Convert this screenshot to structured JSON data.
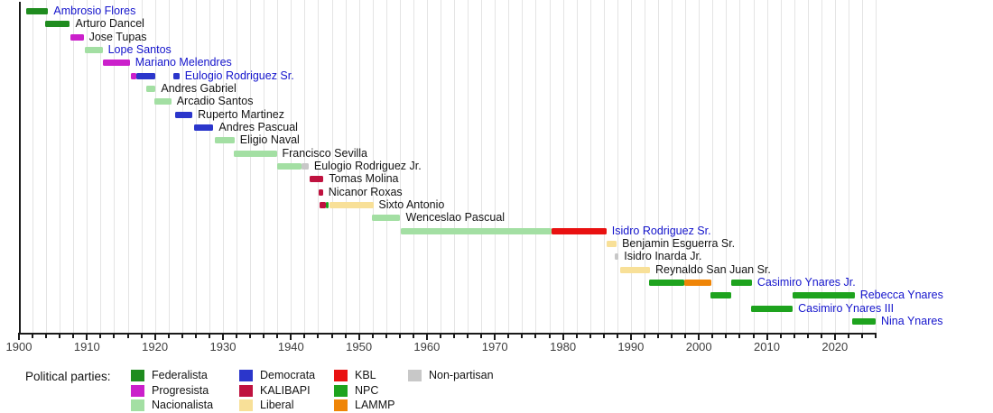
{
  "chart_data": {
    "type": "timeline",
    "title": "",
    "x_axis": {
      "min": 1900,
      "max": 2026,
      "major_tick_interval": 10,
      "minor_tick_interval": 2,
      "gridline_interval": 2,
      "tick_labels": [
        1900,
        1910,
        1920,
        1930,
        1940,
        1950,
        1960,
        1970,
        1980,
        1990,
        2000,
        2010,
        2020
      ]
    },
    "party_colors": {
      "Federalista": "#1f8c1f",
      "Progresista": "#cb20cb",
      "Nacionalista": "#a3dfa3",
      "Democrata": "#2b36cb",
      "KALIBAPI": "#bf123f",
      "Liberal": "#f8e098",
      "KBL": "#e91111",
      "NPC": "#1ea31e",
      "LAMMP": "#ef8507",
      "Non-partisan": "#c8c8c8"
    },
    "label_colors": {
      "linked": "#1414cc",
      "plain": "#141414"
    },
    "rows": [
      {
        "name": "Ambrosio Flores",
        "linked": true,
        "segments": [
          [
            "Federalista",
            1901.0,
            1904.3
          ]
        ]
      },
      {
        "name": "Arturo Dancel",
        "linked": false,
        "segments": [
          [
            "Federalista",
            1903.9,
            1907.5
          ]
        ]
      },
      {
        "name": "Jose Tupas",
        "linked": false,
        "segments": [
          [
            "Progresista",
            1907.5,
            1909.5
          ]
        ]
      },
      {
        "name": "Lope Santos",
        "linked": true,
        "segments": [
          [
            "Nacionalista",
            1909.7,
            1912.3
          ]
        ]
      },
      {
        "name": "Mariano Melendres",
        "linked": true,
        "segments": [
          [
            "Progresista",
            1912.3,
            1916.3
          ]
        ]
      },
      {
        "name": "Eulogio Rodriguez Sr.",
        "linked": true,
        "segments": [
          [
            "Progresista",
            1916.4,
            1917.2
          ],
          [
            "Democrata",
            1917.2,
            1920.0
          ],
          [
            "Democrata",
            1922.7,
            1923.6
          ]
        ]
      },
      {
        "name": "Andres Gabriel",
        "linked": false,
        "segments": [
          [
            "Nacionalista",
            1918.7,
            1920.1
          ]
        ]
      },
      {
        "name": "Arcadio Santos",
        "linked": false,
        "segments": [
          [
            "Nacionalista",
            1919.9,
            1922.4
          ]
        ]
      },
      {
        "name": "Ruperto Martinez",
        "linked": false,
        "segments": [
          [
            "Democrata",
            1923.0,
            1925.5
          ]
        ]
      },
      {
        "name": "Andres Pascual",
        "linked": false,
        "segments": [
          [
            "Democrata",
            1925.7,
            1928.6
          ]
        ]
      },
      {
        "name": "Eligio Naval",
        "linked": false,
        "segments": [
          [
            "Nacionalista",
            1928.8,
            1931.7
          ]
        ]
      },
      {
        "name": "Francisco Sevilla",
        "linked": false,
        "segments": [
          [
            "Nacionalista",
            1931.6,
            1937.9
          ]
        ]
      },
      {
        "name": "Eulogio Rodriguez Jr.",
        "linked": false,
        "segments": [
          [
            "Nacionalista",
            1938.0,
            1941.5
          ],
          [
            "Non-partisan",
            1941.5,
            1942.6
          ]
        ]
      },
      {
        "name": "Tomas Molina",
        "linked": false,
        "segments": [
          [
            "KALIBAPI",
            1942.8,
            1944.8
          ]
        ]
      },
      {
        "name": "Nicanor Roxas",
        "linked": false,
        "segments": [
          [
            "KALIBAPI",
            1944.1,
            1944.7
          ]
        ]
      },
      {
        "name": "Sixto Antonio",
        "linked": false,
        "segments": [
          [
            "KALIBAPI",
            1944.2,
            1945.2
          ],
          [
            "NPC",
            1945.2,
            1945.6
          ],
          [
            "Liberal",
            1945.6,
            1952.1
          ]
        ]
      },
      {
        "name": "Wenceslao Pascual",
        "linked": false,
        "segments": [
          [
            "Nacionalista",
            1951.9,
            1956.1
          ]
        ]
      },
      {
        "name": "Isidro Rodriguez Sr.",
        "linked": true,
        "segments": [
          [
            "Nacionalista",
            1956.1,
            1978.3
          ],
          [
            "KBL",
            1978.3,
            1986.4
          ]
        ]
      },
      {
        "name": "Benjamin Esguerra Sr.",
        "linked": false,
        "segments": [
          [
            "Liberal",
            1986.4,
            1987.9
          ]
        ]
      },
      {
        "name": "Isidro Inarda Jr.",
        "linked": false,
        "segments": [
          [
            "Non-partisan",
            1987.6,
            1988.2
          ]
        ]
      },
      {
        "name": "Reynaldo San Juan Sr.",
        "linked": false,
        "segments": [
          [
            "Liberal",
            1988.4,
            1992.8
          ]
        ]
      },
      {
        "name": "Casimiro Ynares Jr.",
        "linked": true,
        "segments": [
          [
            "NPC",
            1992.6,
            1997.9
          ],
          [
            "LAMMP",
            1997.9,
            2001.9
          ],
          [
            "NPC",
            2004.8,
            2007.8
          ]
        ]
      },
      {
        "name": "Rebecca Ynares",
        "linked": true,
        "segments": [
          [
            "NPC",
            2001.7,
            2004.8
          ],
          [
            "NPC",
            2013.8,
            2022.9
          ]
        ]
      },
      {
        "name": "Casimiro Ynares III",
        "linked": true,
        "segments": [
          [
            "NPC",
            2007.7,
            2013.8
          ]
        ]
      },
      {
        "name": "Nina Ynares",
        "linked": true,
        "segments": [
          [
            "NPC",
            2022.5,
            2026.0
          ]
        ]
      }
    ]
  },
  "legend": {
    "title": "Political parties:",
    "columns": [
      [
        "Federalista",
        "Progresista",
        "Nacionalista"
      ],
      [
        "Democrata",
        "KALIBAPI",
        "Liberal"
      ],
      [
        "KBL",
        "NPC",
        "LAMMP"
      ],
      [
        "Non-partisan"
      ]
    ]
  }
}
